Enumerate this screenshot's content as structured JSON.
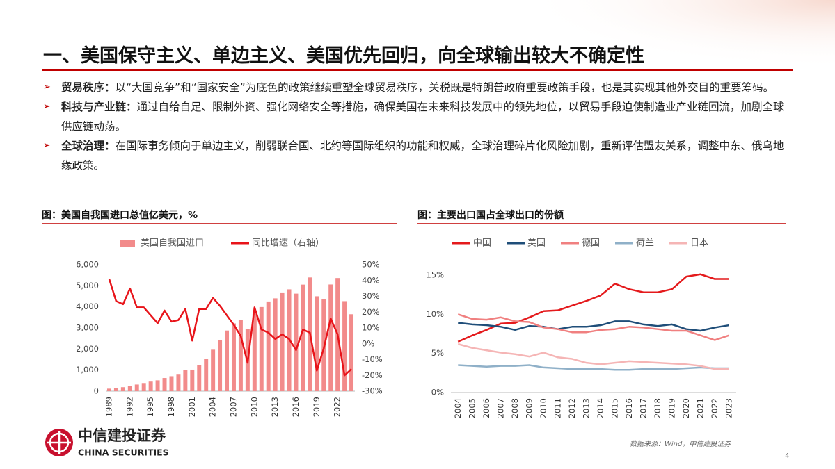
{
  "header": {
    "title": "一、美国保守主义、单边主义、美国优先回归，向全球输出较大不确定性"
  },
  "bullets": [
    {
      "label": "贸易秩序：",
      "text": "以“大国竞争”和“国家安全”为底色的政策继续重塑全球贸易秩序，关税既是特朗普政府重要政策手段，也是其实现其他外交目的重要筹码。"
    },
    {
      "label": "科技与产业链：",
      "text": "通过自给自足、限制外资、强化网络安全等措施，确保美国在未来科技发展中的领先地位，以贸易手段迫使制造业产业链回流，加剧全球供应链动荡。"
    },
    {
      "label": "全球治理：",
      "text": "在国际事务倾向于单边主义，削弱联合国、北约等国际组织的功能和权威，全球治理碎片化风险加剧，重新评估盟友关系，调整中东、俄乌地缘政策。"
    }
  ],
  "chart_data": [
    {
      "type": "combo",
      "title": "图：美国自我国进口总值亿美元，%",
      "categories": [
        "1989",
        null,
        null,
        "1992",
        null,
        null,
        "1995",
        null,
        null,
        "1998",
        null,
        null,
        "2001",
        null,
        null,
        "2004",
        null,
        null,
        "2007",
        null,
        null,
        "2010",
        null,
        null,
        "2013",
        null,
        null,
        "2016",
        null,
        null,
        "2019",
        null,
        null,
        "2022",
        null,
        null
      ],
      "series": [
        {
          "name": "美国自我国进口",
          "type": "bar",
          "color": "#f28b8b",
          "values": [
            120,
            152,
            190,
            257,
            315,
            387,
            455,
            515,
            625,
            711,
            817,
            1000,
            1023,
            1252,
            1524,
            1967,
            2434,
            2878,
            3215,
            3378,
            2964,
            3650,
            3993,
            4256,
            4404,
            4684,
            4832,
            4628,
            5056,
            5396,
            4502,
            4351,
            5062,
            5368,
            4271,
            3650
          ]
        },
        {
          "name": "同比增速（右轴）",
          "type": "line",
          "axis": "y2",
          "color": "#e8141a",
          "values": [
            41,
            27,
            25,
            35,
            23,
            23,
            18,
            13,
            21,
            14,
            15,
            22,
            2,
            22,
            22,
            29,
            24,
            18,
            12,
            5,
            -12,
            23,
            9,
            7,
            3,
            6,
            3,
            -4,
            9,
            7,
            -17,
            -3,
            16,
            6,
            -20,
            -16
          ]
        }
      ],
      "ylim": [
        0,
        6000
      ],
      "yticks": [
        0,
        {
          "value": 1000,
          "label": "1,000"
        },
        {
          "value": 2000,
          "label": "2,000"
        },
        {
          "value": 3000,
          "label": "3,000"
        },
        {
          "value": 4000,
          "label": "4,000"
        },
        {
          "value": 5000,
          "label": "5,000"
        },
        {
          "value": 6000,
          "label": "6,000"
        }
      ],
      "y2lim": [
        -30,
        50
      ],
      "y2ticks": [
        {
          "value": -30,
          "label": "-30%"
        },
        {
          "value": -20,
          "label": "-20%"
        },
        {
          "value": -10,
          "label": "-10%"
        },
        {
          "value": 0,
          "label": "0%"
        },
        {
          "value": 10,
          "label": "10%"
        },
        {
          "value": 20,
          "label": "20%"
        },
        {
          "value": 30,
          "label": "30%"
        },
        {
          "value": 40,
          "label": "40%"
        },
        {
          "value": 50,
          "label": "50%"
        }
      ],
      "grid": false
    },
    {
      "type": "line",
      "title": "图：主要出口国占全球出口的份额",
      "categories": [
        "2004",
        "2005",
        "2006",
        "2007",
        "2008",
        "2009",
        "2010",
        "2011",
        "2012",
        "2013",
        "2014",
        "2015",
        "2016",
        "2017",
        "2018",
        "2019",
        "2020",
        "2021",
        "2022",
        "2023"
      ],
      "series": [
        {
          "name": "中国",
          "color": "#e41a1c",
          "values": [
            6.5,
            7.3,
            8.0,
            8.8,
            8.9,
            9.6,
            10.4,
            10.5,
            11.1,
            11.7,
            12.4,
            13.9,
            13.2,
            12.8,
            12.8,
            13.2,
            14.8,
            15.1,
            14.5,
            14.5
          ]
        },
        {
          "name": "美国",
          "color": "#1f4e79",
          "values": [
            8.9,
            8.7,
            8.6,
            8.4,
            8.0,
            8.5,
            8.4,
            8.1,
            8.4,
            8.4,
            8.6,
            9.1,
            9.1,
            8.7,
            8.5,
            8.7,
            8.1,
            7.9,
            8.3,
            8.6
          ]
        },
        {
          "name": "德国",
          "color": "#f08080",
          "values": [
            10.0,
            9.4,
            9.3,
            9.6,
            9.1,
            9.0,
            8.3,
            8.1,
            7.7,
            7.7,
            8.0,
            8.1,
            8.4,
            8.3,
            8.1,
            7.9,
            7.9,
            7.3,
            6.7,
            7.3
          ]
        },
        {
          "name": "荷兰",
          "color": "#8fb0c8",
          "values": [
            3.5,
            3.4,
            3.3,
            3.4,
            3.4,
            3.5,
            3.2,
            3.1,
            3.0,
            3.0,
            3.0,
            2.9,
            2.9,
            3.0,
            3.0,
            3.0,
            3.1,
            3.2,
            3.1,
            3.1
          ]
        },
        {
          "name": "日本",
          "color": "#f5b5b5",
          "values": [
            6.2,
            5.7,
            5.4,
            5.1,
            4.9,
            4.6,
            5.1,
            4.5,
            4.3,
            3.8,
            3.6,
            3.8,
            4.0,
            3.9,
            3.8,
            3.7,
            3.6,
            3.4,
            3.0,
            3.0
          ]
        }
      ],
      "ylim": [
        0,
        16.5
      ],
      "yticks": [
        {
          "value": 0,
          "label": "0%"
        },
        {
          "value": 5,
          "label": "5%"
        },
        {
          "value": 10,
          "label": "10%"
        },
        {
          "value": 15,
          "label": "15%"
        }
      ],
      "grid": false
    }
  ],
  "footer": {
    "company_cn": "中信建投证券",
    "company_en": "CHINA SECURITIES",
    "source": "数据来源：Wind，中信建投证券",
    "page_number": "4"
  }
}
